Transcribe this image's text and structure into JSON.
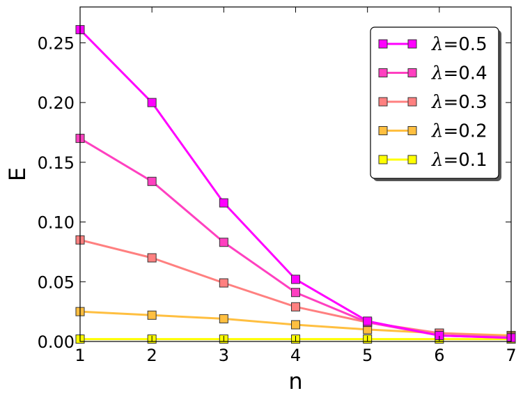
{
  "chart_data": {
    "type": "line",
    "title": "",
    "xlabel": "n",
    "ylabel": "E",
    "xlim": [
      1,
      7
    ],
    "ylim": [
      0,
      0.28
    ],
    "xticks": [
      1,
      2,
      3,
      4,
      5,
      6,
      7
    ],
    "xtick_labels": [
      "1",
      "2",
      "3",
      "4",
      "5",
      "6",
      "7"
    ],
    "yticks": [
      0,
      0.05,
      0.1,
      0.15,
      0.2,
      0.25
    ],
    "ytick_labels": [
      "0.00",
      "0.05",
      "0.10",
      "0.15",
      "0.20",
      "0.25"
    ],
    "grid": false,
    "legend_position": "top-right",
    "x": [
      1,
      2,
      3,
      4,
      5,
      6,
      7
    ],
    "series": [
      {
        "name": "0.5",
        "color": "#ff00ff",
        "values": [
          0.261,
          0.2,
          0.116,
          0.052,
          0.017,
          0.005,
          0.003
        ]
      },
      {
        "name": "0.4",
        "color": "#ff40c0",
        "values": [
          0.17,
          0.134,
          0.083,
          0.041,
          0.016,
          0.005,
          0.003
        ]
      },
      {
        "name": "0.3",
        "color": "#ff8080",
        "values": [
          0.085,
          0.07,
          0.049,
          0.029,
          0.016,
          0.007,
          0.004
        ]
      },
      {
        "name": "0.2",
        "color": "#ffbf40",
        "values": [
          0.025,
          0.022,
          0.019,
          0.014,
          0.01,
          0.007,
          0.005
        ]
      },
      {
        "name": "0.1",
        "color": "#ffff00",
        "values": [
          0.002,
          0.002,
          0.002,
          0.002,
          0.002,
          0.002,
          0.002
        ]
      }
    ],
    "legend_prefix": "λ="
  }
}
